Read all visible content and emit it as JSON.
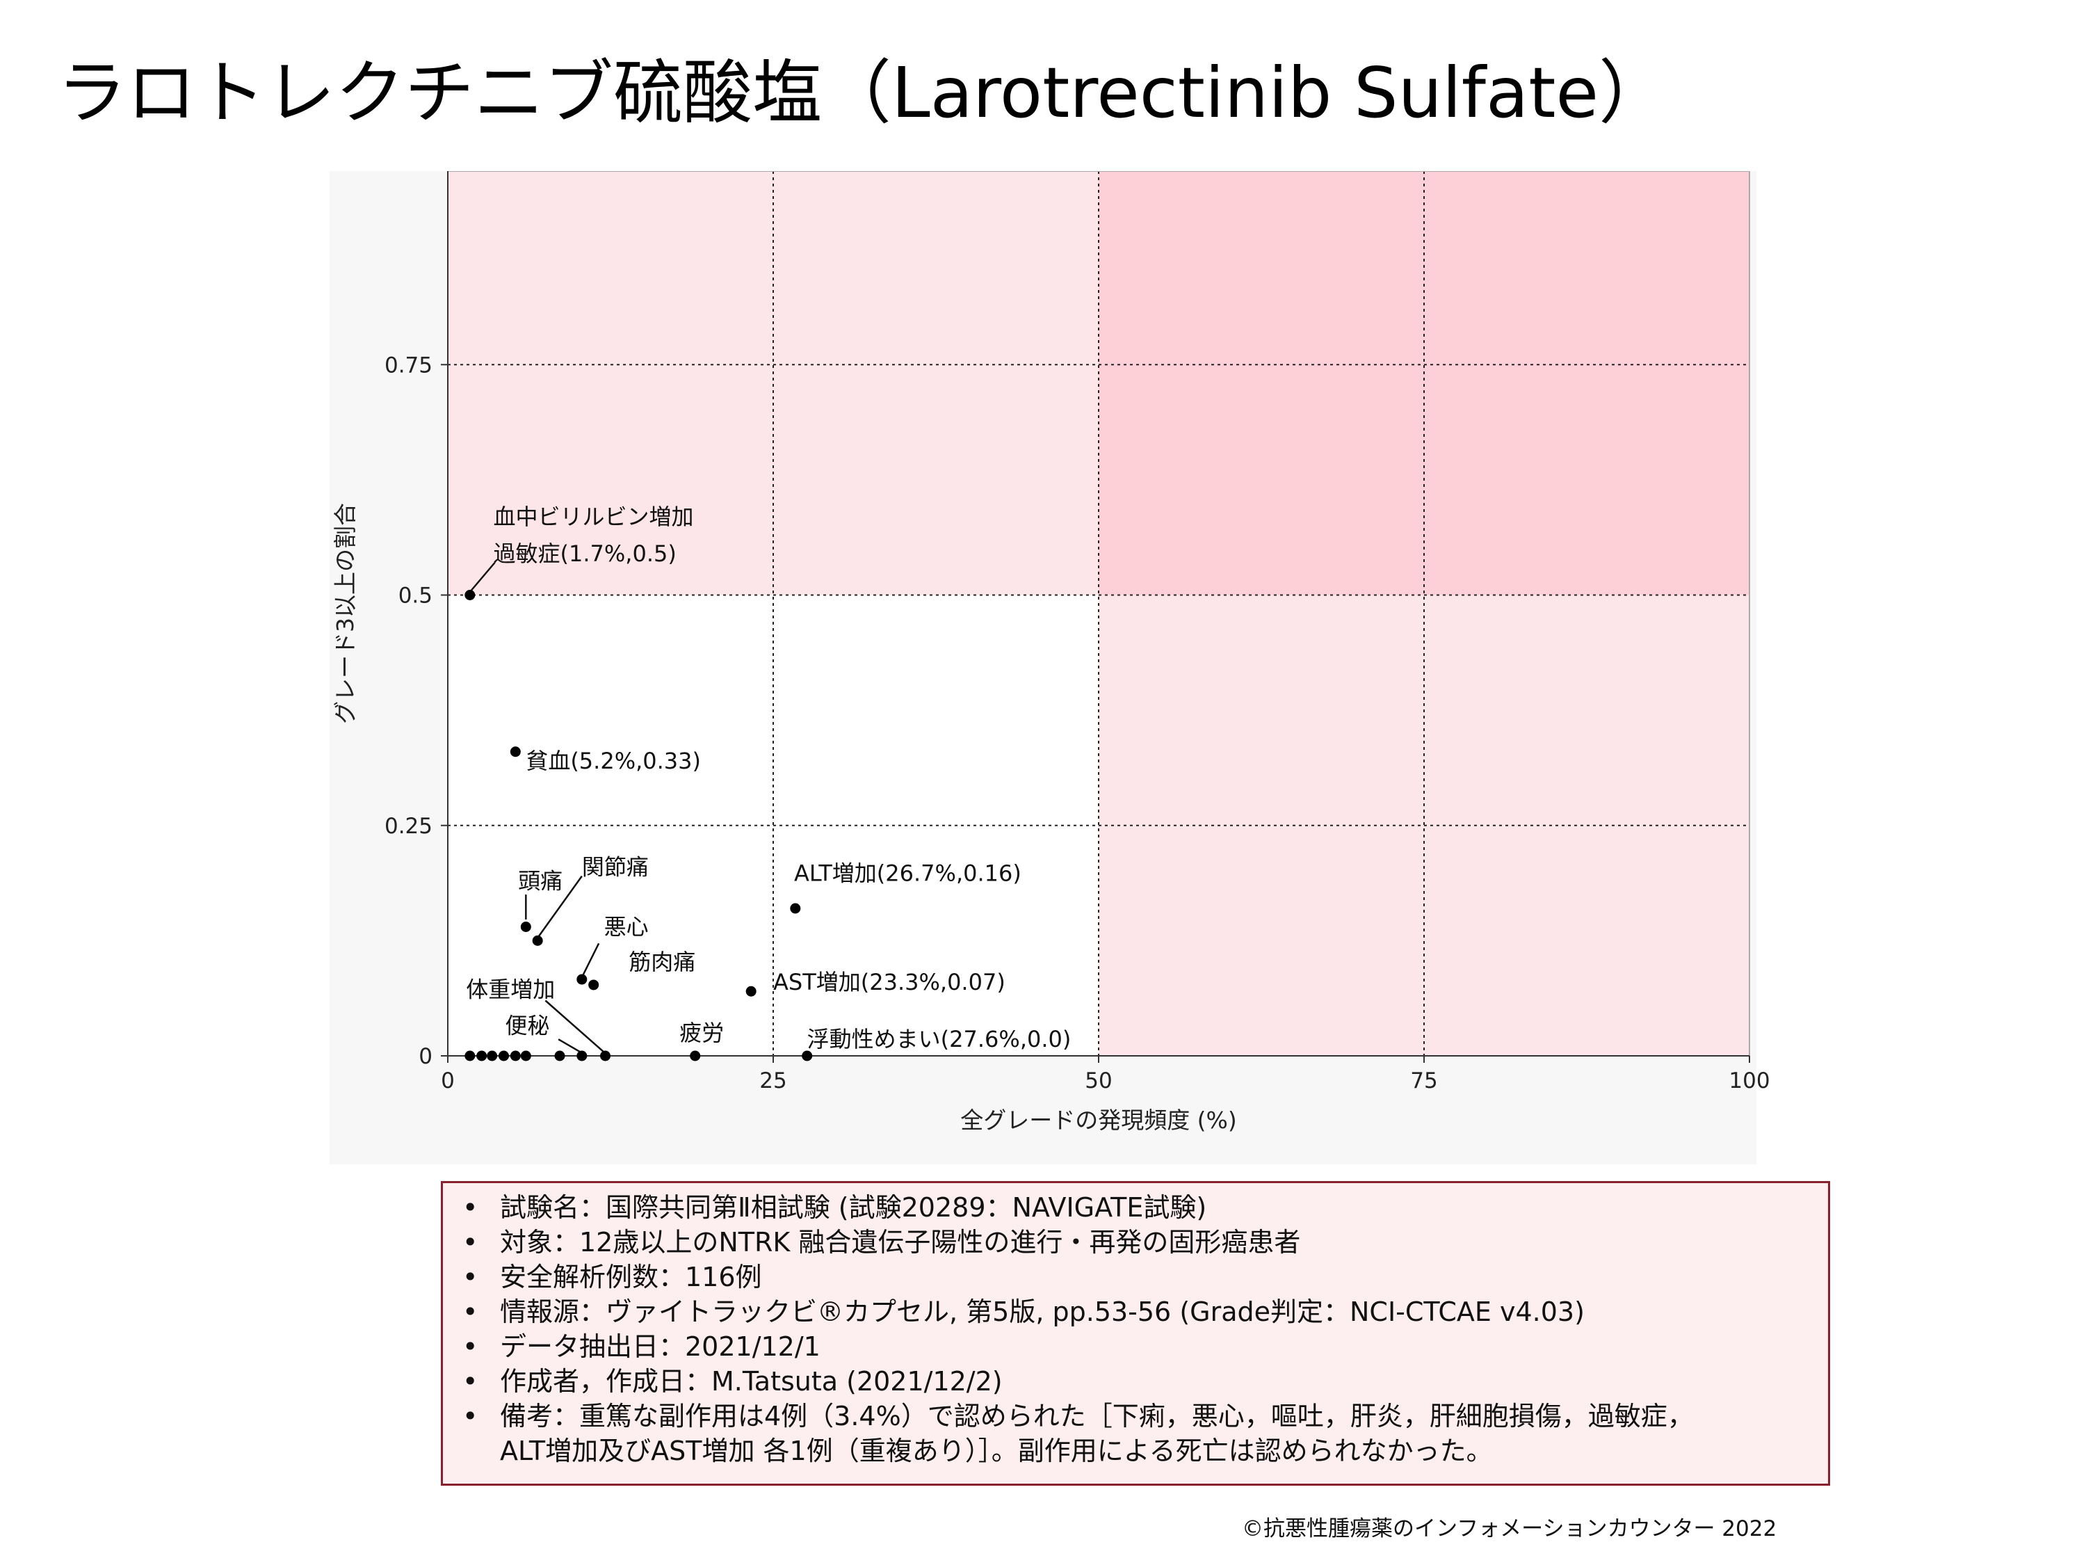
{
  "page": {
    "title": "ラロトレクチニブ硫酸塩（Larotrectinib Sulfate）",
    "credit": "©抗悪性腫瘍薬のインフォメーションカウンター 2022"
  },
  "info": {
    "items": [
      "試験名：国際共同第Ⅱ相試験 (試験20289：NAVIGATE試験)",
      "対象：12歳以上のNTRK 融合遺伝子陽性の進行・再発の固形癌患者",
      "安全解析例数：116例",
      "情報源：ヴァイトラックビ®カプセル, 第5版, pp.53-56 (Grade判定：NCI-CTCAE v4.03)",
      "データ抽出日：2021/12/1",
      "作成者，作成日：M.Tatsuta (2021/12/2)",
      "備考：重篤な副作用は4例（3.4%）で認められた［下痢，悪心，嘔吐，肝炎，肝細胞損傷，過敏症，",
      "ALT増加及びAST増加 各1例（重複あり）］。副作用による死亡は認められなかった。"
    ],
    "bullet": "•"
  },
  "chart_data": {
    "type": "scatter",
    "xlabel": "全グレードの発現頻度 (%)",
    "ylabel": "グレード3以上の割合",
    "xlim": [
      0,
      100
    ],
    "ylim": [
      0,
      0.96
    ],
    "xticks": [
      0,
      25,
      50,
      75,
      100
    ],
    "xtick_labels": [
      "0",
      "25",
      "50",
      "75",
      "100"
    ],
    "yticks": [
      0,
      0.25,
      0.5,
      0.75
    ],
    "ytick_labels": [
      "0",
      "0.25",
      "0.5",
      "0.75"
    ],
    "grid": "dotted at ticks",
    "region_colors": {
      "light": "#fde6ea",
      "medium": "#fdd0d8",
      "white": "#ffffff",
      "outer": "#f7f7f7"
    },
    "points": [
      {
        "x": 1.7,
        "y": 0.5
      },
      {
        "x": 5.2,
        "y": 0.33
      },
      {
        "x": 6.0,
        "y": 0.14
      },
      {
        "x": 6.9,
        "y": 0.125
      },
      {
        "x": 10.3,
        "y": 0.083
      },
      {
        "x": 11.2,
        "y": 0.077
      },
      {
        "x": 26.7,
        "y": 0.16
      },
      {
        "x": 23.3,
        "y": 0.07
      },
      {
        "x": 1.7,
        "y": 0.0
      },
      {
        "x": 2.6,
        "y": 0.0
      },
      {
        "x": 3.4,
        "y": 0.0
      },
      {
        "x": 4.3,
        "y": 0.0
      },
      {
        "x": 5.2,
        "y": 0.0
      },
      {
        "x": 6.0,
        "y": 0.0
      },
      {
        "x": 8.6,
        "y": 0.0
      },
      {
        "x": 10.3,
        "y": 0.0
      },
      {
        "x": 12.1,
        "y": 0.0
      },
      {
        "x": 19.0,
        "y": 0.0
      },
      {
        "x": 27.6,
        "y": 0.0
      }
    ],
    "annotations": [
      {
        "text": "血中ビリルビン増加",
        "tx": 3.5,
        "ty": 0.585
      },
      {
        "text": "過敏症(1.7%,0.5)",
        "tx": 3.5,
        "ty": 0.545,
        "leader": {
          "x1": 3.6,
          "y1": 0.535,
          "x2": 1.8,
          "y2": 0.505
        }
      },
      {
        "text": "貧血(5.2%,0.33)",
        "tx": 6.0,
        "ty": 0.32
      },
      {
        "text": "頭痛",
        "tx": 5.4,
        "ty": 0.19,
        "leader": {
          "x1": 6.0,
          "y1": 0.175,
          "x2": 6.0,
          "y2": 0.148
        }
      },
      {
        "text": "関節痛",
        "tx": 10.3,
        "ty": 0.205,
        "leader": {
          "x1": 10.3,
          "y1": 0.195,
          "x2": 7.0,
          "y2": 0.13
        }
      },
      {
        "text": "悪心",
        "tx": 12.0,
        "ty": 0.14,
        "leader": {
          "x1": 11.6,
          "y1": 0.122,
          "x2": 10.4,
          "y2": 0.088
        }
      },
      {
        "text": "筋肉痛",
        "tx": 13.9,
        "ty": 0.102
      },
      {
        "text": "ALT増加(26.7%,0.16)",
        "tx": 26.6,
        "ty": 0.198
      },
      {
        "text": "AST増加(23.3%,0.07)",
        "tx": 25.0,
        "ty": 0.08
      },
      {
        "text": "体重増加",
        "tx": 1.4,
        "ty": 0.072,
        "leader": {
          "x1": 7.5,
          "y1": 0.06,
          "x2": 12.0,
          "y2": 0.004
        }
      },
      {
        "text": "便秘",
        "tx": 4.4,
        "ty": 0.033,
        "leader": {
          "x1": 8.5,
          "y1": 0.018,
          "x2": 10.2,
          "y2": 0.004
        }
      },
      {
        "text": "疲労",
        "tx": 17.8,
        "ty": 0.025
      },
      {
        "text": "浮動性めまい(27.6%,0.0)",
        "tx": 27.6,
        "ty": 0.018
      }
    ]
  }
}
